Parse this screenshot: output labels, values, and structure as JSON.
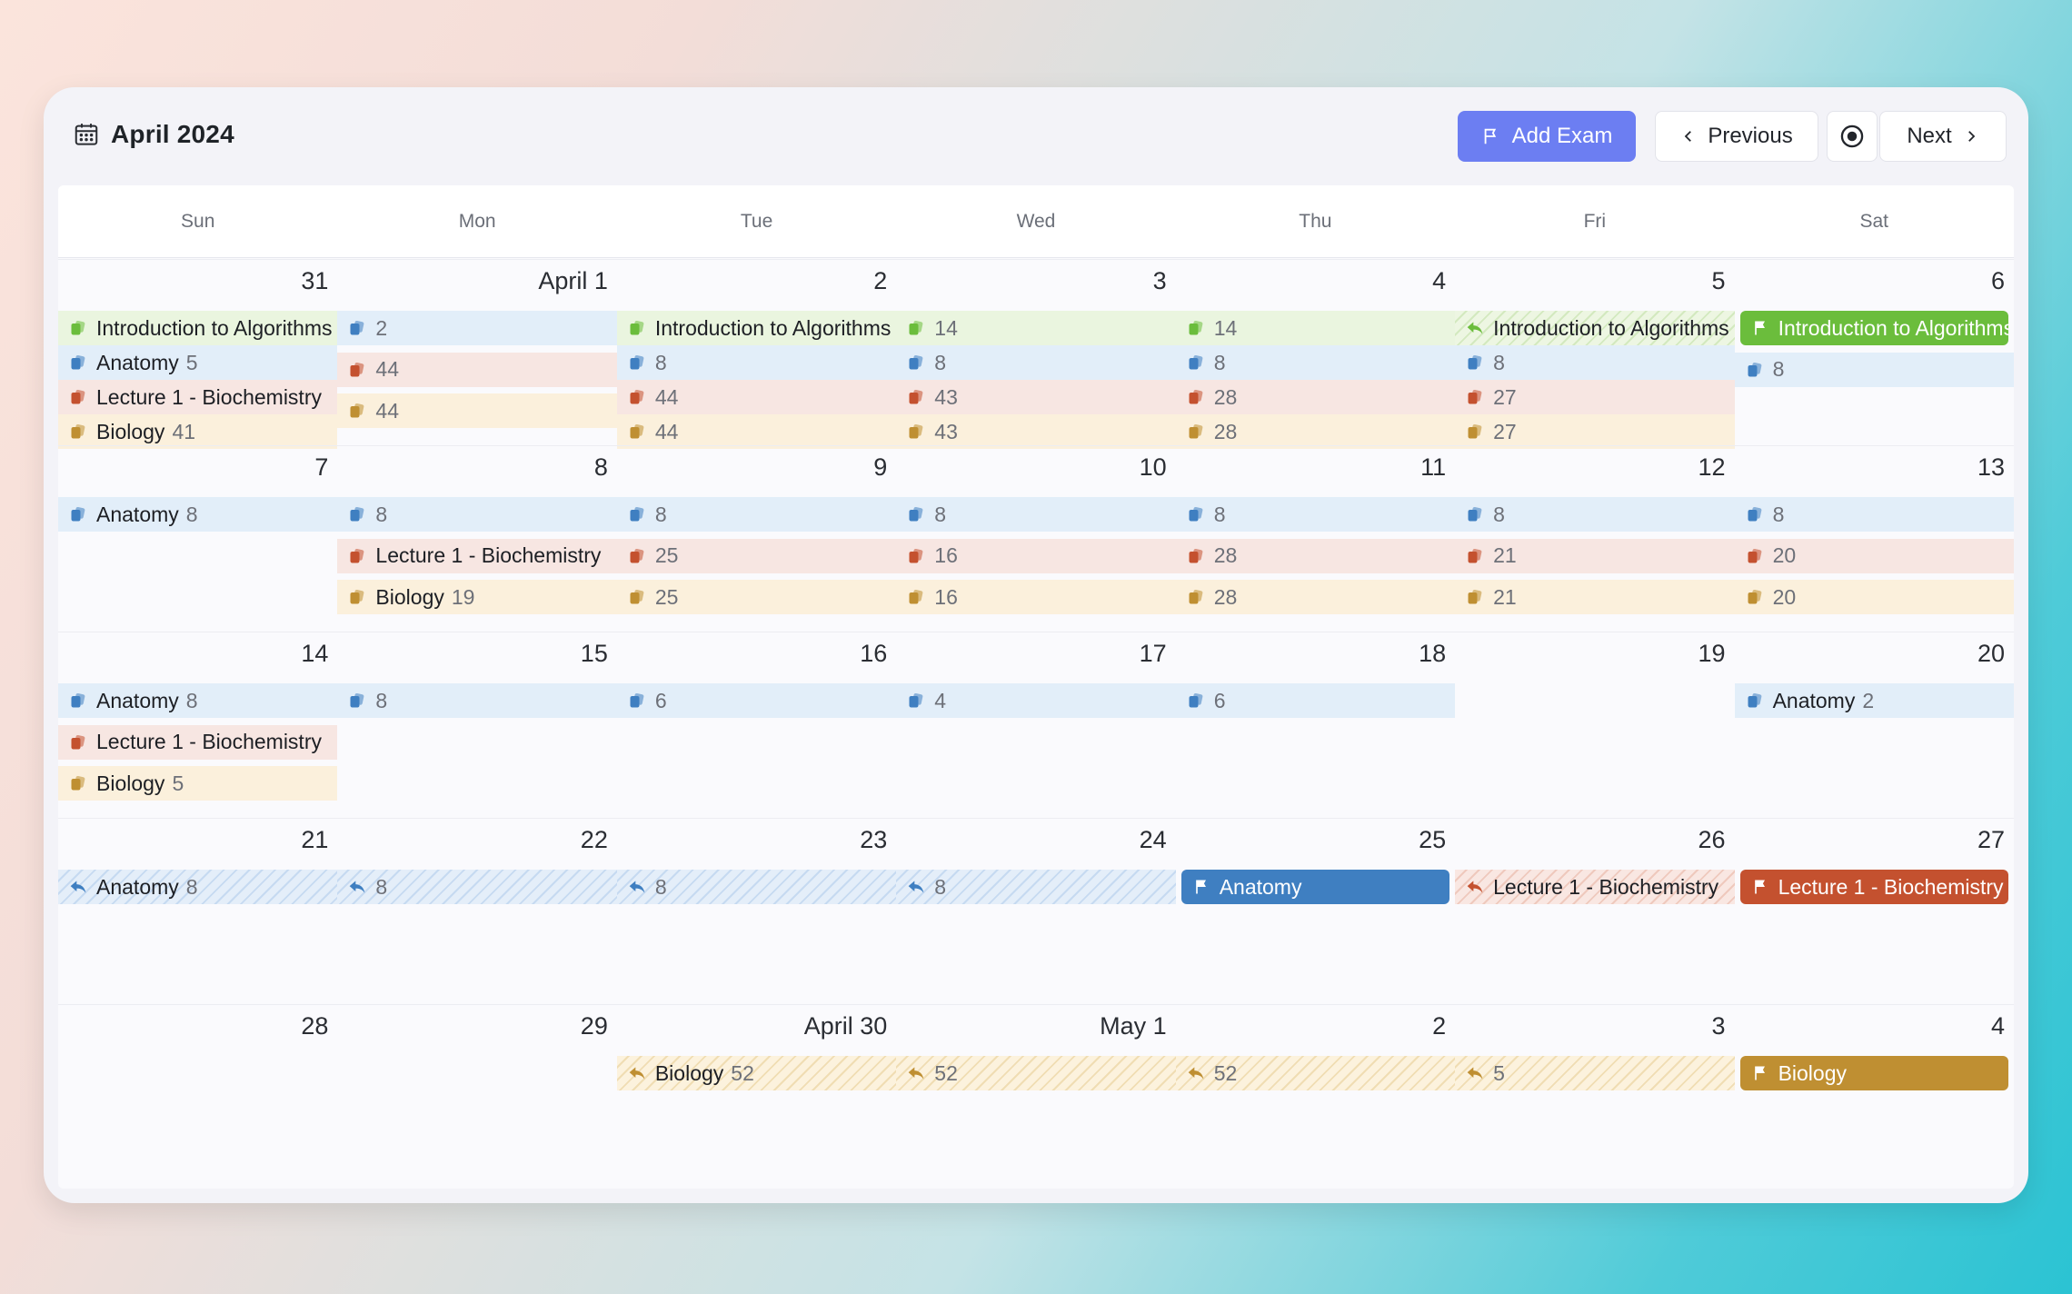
{
  "title": "April 2024",
  "buttons": {
    "add_exam": "Add Exam",
    "previous": "Previous",
    "next": "Next"
  },
  "weekdays": [
    "Sun",
    "Mon",
    "Tue",
    "Wed",
    "Thu",
    "Fri",
    "Sat"
  ],
  "colors": {
    "blue": "#3f7fc1",
    "red": "#c4512f",
    "yellow": "#bf8f32",
    "green": "#6bbd3c",
    "accent": "#6c7ef2"
  },
  "weeks": [
    {
      "days": [
        "31",
        "April 1",
        "2",
        "3",
        "4",
        "5",
        "6"
      ],
      "events": [
        {
          "col": 0,
          "row": 0,
          "span": 1,
          "color": "green",
          "style": "tint",
          "icon": "stack-icon",
          "label": "Introduction to Algorithms",
          "count": ""
        },
        {
          "col": 0,
          "row": 1,
          "span": 1,
          "color": "blue",
          "style": "tint",
          "icon": "stack-icon",
          "label": "Anatomy",
          "count": "5"
        },
        {
          "col": 0,
          "row": 2,
          "span": 1,
          "color": "red",
          "style": "tint",
          "icon": "stack-icon",
          "label": "Lecture 1 - Biochemistry",
          "count": ""
        },
        {
          "col": 0,
          "row": 3,
          "span": 1,
          "color": "yellow",
          "style": "tint",
          "icon": "stack-icon",
          "label": "Biology",
          "count": "41"
        },
        {
          "col": 1,
          "row": 0,
          "span": 1,
          "color": "blue",
          "style": "tint",
          "icon": "stack-icon",
          "label": "",
          "count": "2"
        },
        {
          "col": 1,
          "row": 1.2,
          "span": 1,
          "color": "red",
          "style": "tint",
          "icon": "stack-icon",
          "label": "",
          "count": "44"
        },
        {
          "col": 1,
          "row": 2.4,
          "span": 1,
          "color": "yellow",
          "style": "tint",
          "icon": "stack-icon",
          "label": "",
          "count": "44"
        },
        {
          "col": 2,
          "row": 0,
          "span": 1,
          "color": "green",
          "style": "tint",
          "icon": "stack-icon",
          "label": "Introduction to Algorithms",
          "count": ""
        },
        {
          "col": 2,
          "row": 1,
          "span": 1,
          "color": "blue",
          "style": "tint",
          "icon": "stack-icon",
          "label": "",
          "count": "8"
        },
        {
          "col": 2,
          "row": 2,
          "span": 1,
          "color": "red",
          "style": "tint",
          "icon": "stack-icon",
          "label": "",
          "count": "44"
        },
        {
          "col": 2,
          "row": 3,
          "span": 1,
          "color": "yellow",
          "style": "tint",
          "icon": "stack-icon",
          "label": "",
          "count": "44"
        },
        {
          "col": 3,
          "row": 0,
          "span": 1,
          "color": "green",
          "style": "tint",
          "icon": "stack-icon",
          "label": "",
          "count": "14"
        },
        {
          "col": 3,
          "row": 1,
          "span": 1,
          "color": "blue",
          "style": "tint",
          "icon": "stack-icon",
          "label": "",
          "count": "8"
        },
        {
          "col": 3,
          "row": 2,
          "span": 1,
          "color": "red",
          "style": "tint",
          "icon": "stack-icon",
          "label": "",
          "count": "43"
        },
        {
          "col": 3,
          "row": 3,
          "span": 1,
          "color": "yellow",
          "style": "tint",
          "icon": "stack-icon",
          "label": "",
          "count": "43"
        },
        {
          "col": 4,
          "row": 0,
          "span": 1,
          "color": "green",
          "style": "tint",
          "icon": "stack-icon",
          "label": "",
          "count": "14"
        },
        {
          "col": 4,
          "row": 1,
          "span": 1,
          "color": "blue",
          "style": "tint",
          "icon": "stack-icon",
          "label": "",
          "count": "8"
        },
        {
          "col": 4,
          "row": 2,
          "span": 1,
          "color": "red",
          "style": "tint",
          "icon": "stack-icon",
          "label": "",
          "count": "28"
        },
        {
          "col": 4,
          "row": 3,
          "span": 1,
          "color": "yellow",
          "style": "tint",
          "icon": "stack-icon",
          "label": "",
          "count": "28"
        },
        {
          "col": 5,
          "row": 0,
          "span": 1,
          "color": "green",
          "style": "hatch",
          "icon": "reply-icon",
          "label": "Introduction to Algorithms",
          "count": ""
        },
        {
          "col": 5,
          "row": 1,
          "span": 1,
          "color": "blue",
          "style": "tint",
          "icon": "stack-icon",
          "label": "",
          "count": "8"
        },
        {
          "col": 5,
          "row": 2,
          "span": 1,
          "color": "red",
          "style": "tint",
          "icon": "stack-icon",
          "label": "",
          "count": "27"
        },
        {
          "col": 5,
          "row": 3,
          "span": 1,
          "color": "yellow",
          "style": "tint",
          "icon": "stack-icon",
          "label": "",
          "count": "27"
        },
        {
          "col": 6,
          "row": 0,
          "span": 1,
          "color": "green",
          "style": "solid",
          "icon": "flag-icon",
          "label": "Introduction to Algorithms",
          "count": ""
        },
        {
          "col": 6,
          "row": 1.2,
          "span": 1,
          "color": "blue",
          "style": "tint",
          "icon": "stack-icon",
          "label": "",
          "count": "8"
        }
      ]
    },
    {
      "days": [
        "7",
        "8",
        "9",
        "10",
        "11",
        "12",
        "13"
      ],
      "events": [
        {
          "col": 0,
          "row": 0,
          "span": 1,
          "color": "blue",
          "style": "tint",
          "icon": "stack-icon",
          "label": "Anatomy",
          "count": "8"
        },
        {
          "col": 1,
          "row": 0,
          "span": 1,
          "color": "blue",
          "style": "tint",
          "icon": "stack-icon",
          "label": "",
          "count": "8"
        },
        {
          "col": 1,
          "row": 1.2,
          "span": 1,
          "color": "red",
          "style": "tint",
          "icon": "stack-icon",
          "label": "Lecture 1 - Biochemistry",
          "count": ""
        },
        {
          "col": 1,
          "row": 2.4,
          "span": 1,
          "color": "yellow",
          "style": "tint",
          "icon": "stack-icon",
          "label": "Biology",
          "count": "19"
        },
        {
          "col": 2,
          "row": 0,
          "span": 1,
          "color": "blue",
          "style": "tint",
          "icon": "stack-icon",
          "label": "",
          "count": "8"
        },
        {
          "col": 2,
          "row": 1.2,
          "span": 1,
          "color": "red",
          "style": "tint",
          "icon": "stack-icon",
          "label": "",
          "count": "25"
        },
        {
          "col": 2,
          "row": 2.4,
          "span": 1,
          "color": "yellow",
          "style": "tint",
          "icon": "stack-icon",
          "label": "",
          "count": "25"
        },
        {
          "col": 3,
          "row": 0,
          "span": 1,
          "color": "blue",
          "style": "tint",
          "icon": "stack-icon",
          "label": "",
          "count": "8"
        },
        {
          "col": 3,
          "row": 1.2,
          "span": 1,
          "color": "red",
          "style": "tint",
          "icon": "stack-icon",
          "label": "",
          "count": "16"
        },
        {
          "col": 3,
          "row": 2.4,
          "span": 1,
          "color": "yellow",
          "style": "tint",
          "icon": "stack-icon",
          "label": "",
          "count": "16"
        },
        {
          "col": 4,
          "row": 0,
          "span": 1,
          "color": "blue",
          "style": "tint",
          "icon": "stack-icon",
          "label": "",
          "count": "8"
        },
        {
          "col": 4,
          "row": 1.2,
          "span": 1,
          "color": "red",
          "style": "tint",
          "icon": "stack-icon",
          "label": "",
          "count": "28"
        },
        {
          "col": 4,
          "row": 2.4,
          "span": 1,
          "color": "yellow",
          "style": "tint",
          "icon": "stack-icon",
          "label": "",
          "count": "28"
        },
        {
          "col": 5,
          "row": 0,
          "span": 1,
          "color": "blue",
          "style": "tint",
          "icon": "stack-icon",
          "label": "",
          "count": "8"
        },
        {
          "col": 5,
          "row": 1.2,
          "span": 1,
          "color": "red",
          "style": "tint",
          "icon": "stack-icon",
          "label": "",
          "count": "21"
        },
        {
          "col": 5,
          "row": 2.4,
          "span": 1,
          "color": "yellow",
          "style": "tint",
          "icon": "stack-icon",
          "label": "",
          "count": "21"
        },
        {
          "col": 6,
          "row": 0,
          "span": 1,
          "color": "blue",
          "style": "tint",
          "icon": "stack-icon",
          "label": "",
          "count": "8"
        },
        {
          "col": 6,
          "row": 1.2,
          "span": 1,
          "color": "red",
          "style": "tint",
          "icon": "stack-icon",
          "label": "",
          "count": "20"
        },
        {
          "col": 6,
          "row": 2.4,
          "span": 1,
          "color": "yellow",
          "style": "tint",
          "icon": "stack-icon",
          "label": "",
          "count": "20"
        }
      ]
    },
    {
      "days": [
        "14",
        "15",
        "16",
        "17",
        "18",
        "19",
        "20"
      ],
      "events": [
        {
          "col": 0,
          "row": 0,
          "span": 1,
          "color": "blue",
          "style": "tint",
          "icon": "stack-icon",
          "label": "Anatomy",
          "count": "8"
        },
        {
          "col": 0,
          "row": 1.2,
          "span": 1,
          "color": "red",
          "style": "tint",
          "icon": "stack-icon",
          "label": "Lecture 1 - Biochemistry",
          "count": ""
        },
        {
          "col": 0,
          "row": 2.4,
          "span": 1,
          "color": "yellow",
          "style": "tint",
          "icon": "stack-icon",
          "label": "Biology",
          "count": "5"
        },
        {
          "col": 1,
          "row": 0,
          "span": 1,
          "color": "blue",
          "style": "tint",
          "icon": "stack-icon",
          "label": "",
          "count": "8"
        },
        {
          "col": 2,
          "row": 0,
          "span": 1,
          "color": "blue",
          "style": "tint",
          "icon": "stack-icon",
          "label": "",
          "count": "6"
        },
        {
          "col": 3,
          "row": 0,
          "span": 1,
          "color": "blue",
          "style": "tint",
          "icon": "stack-icon",
          "label": "",
          "count": "4"
        },
        {
          "col": 4,
          "row": 0,
          "span": 1,
          "color": "blue",
          "style": "tint",
          "icon": "stack-icon",
          "label": "",
          "count": "6"
        },
        {
          "col": 6,
          "row": 0,
          "span": 1,
          "color": "blue",
          "style": "tint",
          "icon": "stack-icon",
          "label": "Anatomy",
          "count": "2"
        }
      ]
    },
    {
      "days": [
        "21",
        "22",
        "23",
        "24",
        "25",
        "26",
        "27"
      ],
      "events": [
        {
          "col": 0,
          "row": 0,
          "span": 1,
          "color": "blue",
          "style": "hatch",
          "icon": "reply-icon",
          "label": "Anatomy",
          "count": "8"
        },
        {
          "col": 1,
          "row": 0,
          "span": 1,
          "color": "blue",
          "style": "hatch",
          "icon": "reply-icon",
          "label": "",
          "count": "8"
        },
        {
          "col": 2,
          "row": 0,
          "span": 1,
          "color": "blue",
          "style": "hatch",
          "icon": "reply-icon",
          "label": "",
          "count": "8"
        },
        {
          "col": 3,
          "row": 0,
          "span": 1,
          "color": "blue",
          "style": "hatch",
          "icon": "reply-icon",
          "label": "",
          "count": "8"
        },
        {
          "col": 4,
          "row": 0,
          "span": 1,
          "color": "blue",
          "style": "solid",
          "icon": "flag-icon",
          "label": "Anatomy",
          "count": ""
        },
        {
          "col": 5,
          "row": 0,
          "span": 1,
          "color": "red",
          "style": "hatch",
          "icon": "reply-icon",
          "label": "Lecture 1 - Biochemistry",
          "count": ""
        },
        {
          "col": 6,
          "row": 0,
          "span": 1,
          "color": "red",
          "style": "solid",
          "icon": "flag-icon",
          "label": "Lecture 1 - Biochemistry",
          "count": ""
        }
      ]
    },
    {
      "days": [
        "28",
        "29",
        "April 30",
        "May 1",
        "2",
        "3",
        "4"
      ],
      "events": [
        {
          "col": 2,
          "row": 0,
          "span": 1,
          "color": "yellow",
          "style": "hatch",
          "icon": "reply-icon",
          "label": "Biology",
          "count": "52"
        },
        {
          "col": 3,
          "row": 0,
          "span": 1,
          "color": "yellow",
          "style": "hatch",
          "icon": "reply-icon",
          "label": "",
          "count": "52"
        },
        {
          "col": 4,
          "row": 0,
          "span": 1,
          "color": "yellow",
          "style": "hatch",
          "icon": "reply-icon",
          "label": "",
          "count": "52"
        },
        {
          "col": 5,
          "row": 0,
          "span": 1,
          "color": "yellow",
          "style": "hatch",
          "icon": "reply-icon",
          "label": "",
          "count": "5"
        },
        {
          "col": 6,
          "row": 0,
          "span": 1,
          "color": "yellow",
          "style": "solid",
          "icon": "flag-icon",
          "label": "Biology",
          "count": ""
        }
      ]
    }
  ]
}
